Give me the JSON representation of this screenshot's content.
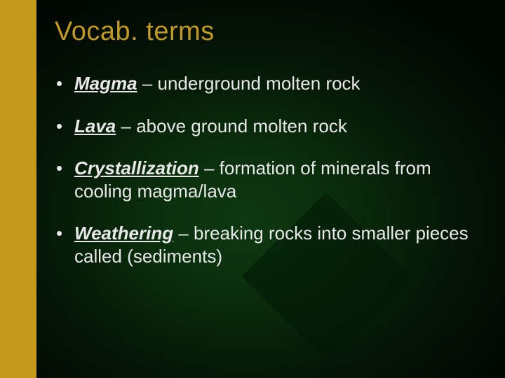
{
  "slide": {
    "title": "Vocab. terms",
    "title_color": "#c49a1a",
    "title_fontsize": 38,
    "text_color": "#e8e8e8",
    "body_fontsize": 26,
    "accent_bar_color": "#c49a1a",
    "background_gradient": {
      "center_color": "#0d3810",
      "mid_color": "#0a2e0c",
      "outer_color": "#041406",
      "edge_color": "#010803"
    },
    "decorative_square_color": "#021806",
    "terms": [
      {
        "name": "Magma",
        "sep": " – ",
        "definition": "underground molten rock"
      },
      {
        "name": "Lava",
        "sep": " – ",
        "definition": "above ground molten rock"
      },
      {
        "name": "Crystallization",
        "sep": " – ",
        "definition": "formation of minerals from cooling magma/lava"
      },
      {
        "name": "Weathering",
        "sep": " – ",
        "definition": "breaking rocks into smaller pieces called (sediments)"
      }
    ]
  }
}
